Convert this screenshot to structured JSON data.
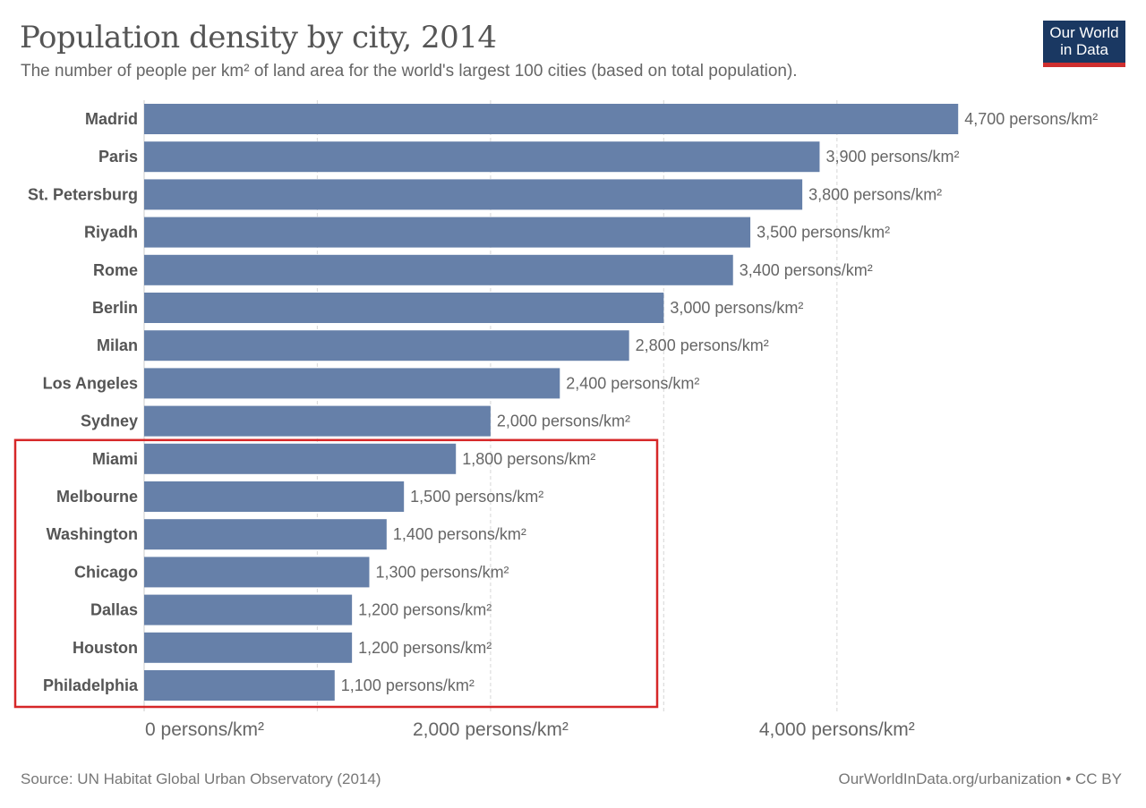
{
  "header": {
    "title": "Population density by city, 2014",
    "subtitle": "The number of people per km² of land area for the world's largest 100 cities (based on total population).",
    "logo_line1": "Our World",
    "logo_line2": "in Data"
  },
  "footer": {
    "source": "Source: UN Habitat Global Urban Observatory (2014)",
    "credit": "OurWorldInData.org/urbanization • CC BY"
  },
  "colors": {
    "bar": "#6680a9",
    "highlight_box": "#d62728",
    "logo_bg": "#1a3862",
    "logo_accent": "#cf2f2f"
  },
  "chart_data": {
    "type": "bar",
    "orientation": "horizontal",
    "title": "Population density by city, 2014",
    "subtitle": "The number of people per km² of land area for the world's largest 100 cities (based on total population).",
    "xlabel": "",
    "ylabel": "",
    "unit": "persons/km²",
    "xlim": [
      0,
      4700
    ],
    "grid": true,
    "gridlines": [
      1000,
      2000,
      3000,
      4000
    ],
    "x_ticks": [
      0,
      2000,
      4000
    ],
    "x_tick_labels": [
      "0 persons/km²",
      "2,000 persons/km²",
      "4,000 persons/km²"
    ],
    "categories": [
      "Madrid",
      "Paris",
      "St. Petersburg",
      "Riyadh",
      "Rome",
      "Berlin",
      "Milan",
      "Los Angeles",
      "Sydney",
      "Miami",
      "Melbourne",
      "Washington",
      "Chicago",
      "Dallas",
      "Houston",
      "Philadelphia"
    ],
    "values": [
      4700,
      3900,
      3800,
      3500,
      3400,
      3000,
      2800,
      2400,
      2000,
      1800,
      1500,
      1400,
      1300,
      1200,
      1200,
      1100
    ],
    "value_labels": [
      "4,700 persons/km²",
      "3,900 persons/km²",
      "3,800 persons/km²",
      "3,500 persons/km²",
      "3,400 persons/km²",
      "3,000 persons/km²",
      "2,800 persons/km²",
      "2,400 persons/km²",
      "2,000 persons/km²",
      "1,800 persons/km²",
      "1,500 persons/km²",
      "1,400 persons/km²",
      "1,300 persons/km²",
      "1,200 persons/km²",
      "1,200 persons/km²",
      "1,100 persons/km²"
    ],
    "annotation": {
      "type": "highlight-box",
      "categories": [
        "Miami",
        "Melbourne",
        "Washington",
        "Chicago",
        "Dallas",
        "Houston",
        "Philadelphia"
      ]
    }
  }
}
